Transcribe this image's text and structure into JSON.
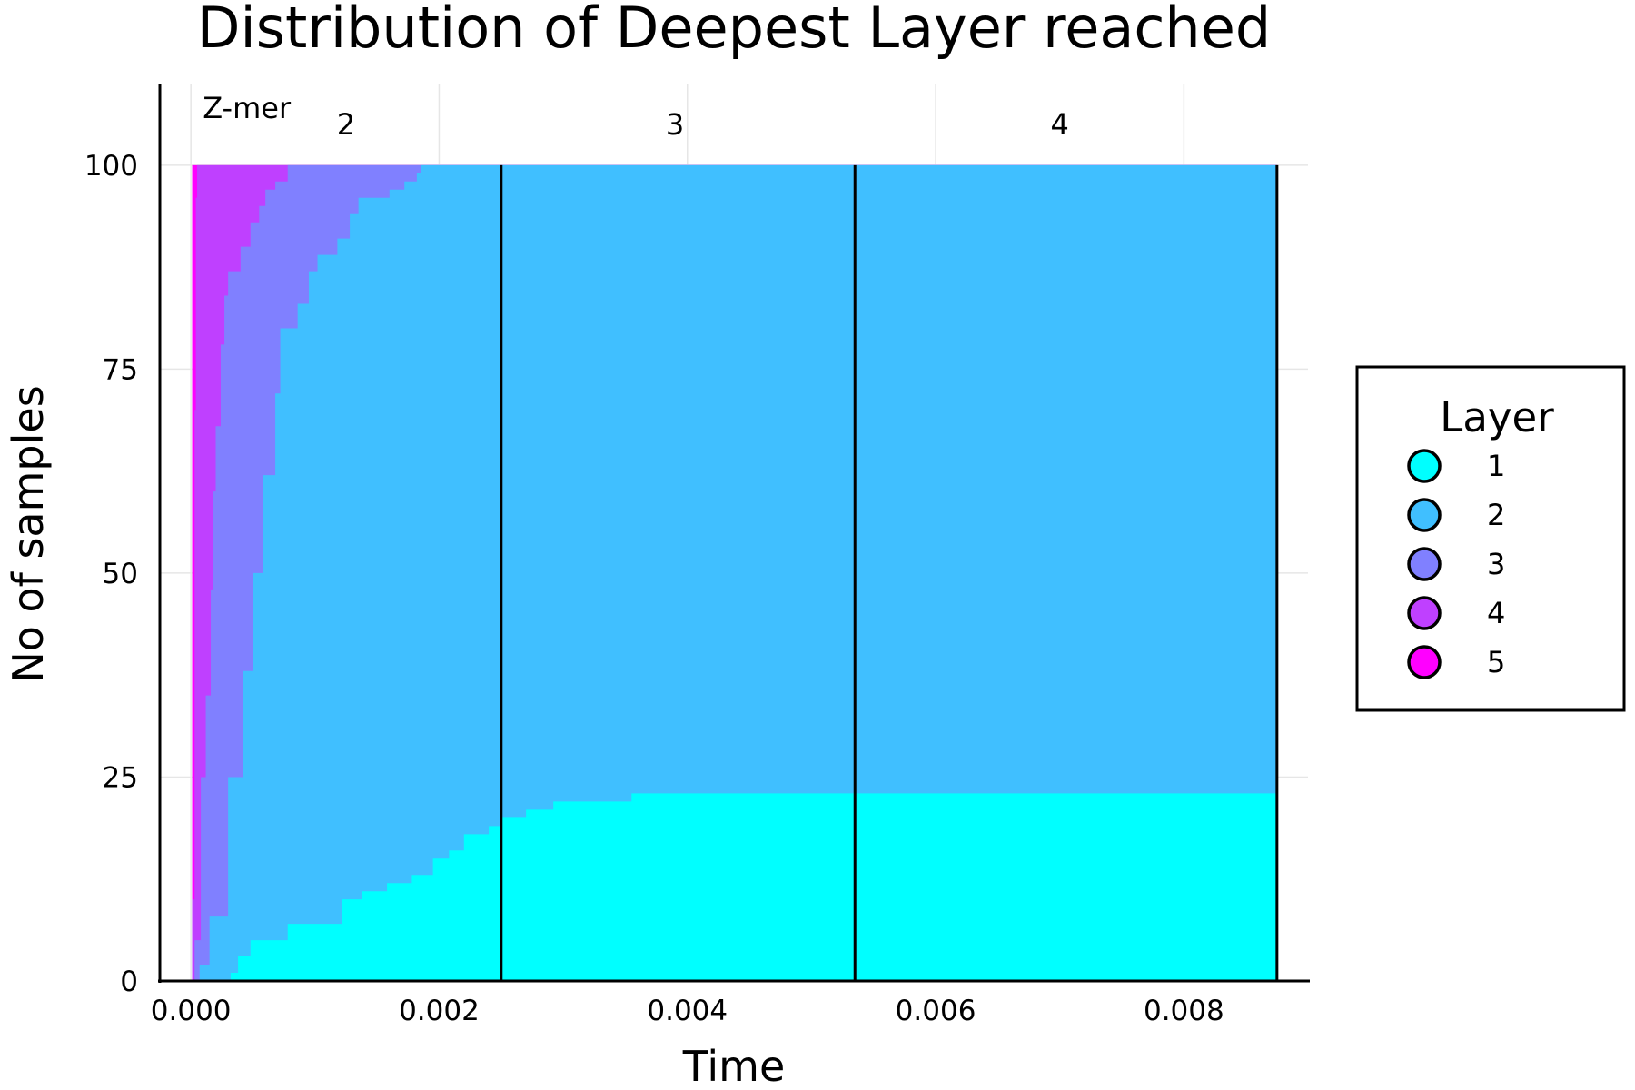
{
  "chart_data": {
    "type": "area",
    "stacked": true,
    "title": "Distribution of Deepest Layer reached",
    "xlabel": "Time",
    "ylabel": "No of samples",
    "xlim": [
      -0.00025,
      0.009
    ],
    "ylim": [
      0,
      110
    ],
    "x_ticks": [
      "0.000",
      "0.002",
      "0.004",
      "0.006",
      "0.008"
    ],
    "x_tick_values": [
      0,
      0.002,
      0.004,
      0.006,
      0.008
    ],
    "y_ticks": [
      "0",
      "25",
      "50",
      "75",
      "100"
    ],
    "y_tick_values": [
      0,
      25,
      50,
      75,
      100
    ],
    "grid": true,
    "legend": {
      "title": "Layer",
      "placement": "right",
      "entries": [
        {
          "label": "1",
          "color": "#00ffff"
        },
        {
          "label": "2",
          "color": "#40bfff"
        },
        {
          "label": "3",
          "color": "#8080ff"
        },
        {
          "label": "4",
          "color": "#bf40ff"
        },
        {
          "label": "5",
          "color": "#ff00ff"
        }
      ]
    },
    "vertical_lines": [
      0.0025,
      0.00535,
      0.00875
    ],
    "annotations": [
      {
        "text": "Z-mer",
        "x": 0.00045,
        "y": 107
      },
      {
        "text": "2",
        "x": 0.00125,
        "y": 105
      },
      {
        "text": "3",
        "x": 0.0039,
        "y": 105
      },
      {
        "text": "4",
        "x": 0.007,
        "y": 105
      }
    ],
    "x_end": 0.00875,
    "series": [
      {
        "name": "1",
        "color": "#00ffff",
        "cumulative_points": [
          [
            0.0,
            0
          ],
          [
            8e-05,
            0
          ],
          [
            0.00032,
            1
          ],
          [
            0.00038,
            3
          ],
          [
            0.00048,
            5
          ],
          [
            0.00078,
            7
          ],
          [
            0.00122,
            10
          ],
          [
            0.00138,
            11
          ],
          [
            0.00158,
            12
          ],
          [
            0.00178,
            13
          ],
          [
            0.00195,
            15
          ],
          [
            0.00208,
            16
          ],
          [
            0.0022,
            18
          ],
          [
            0.0024,
            19
          ],
          [
            0.0025,
            20
          ],
          [
            0.0027,
            21
          ],
          [
            0.00292,
            22
          ],
          [
            0.00355,
            23
          ],
          [
            0.00875,
            23
          ]
        ]
      },
      {
        "name": "2",
        "color": "#40bfff",
        "cumulative_points": [
          [
            0.0,
            0
          ],
          [
            7e-05,
            2
          ],
          [
            0.00015,
            8
          ],
          [
            0.0003,
            25
          ],
          [
            0.00042,
            38
          ],
          [
            0.0005,
            50
          ],
          [
            0.00058,
            62
          ],
          [
            0.00068,
            72
          ],
          [
            0.00072,
            80
          ],
          [
            0.00086,
            83
          ],
          [
            0.00095,
            87
          ],
          [
            0.00102,
            89
          ],
          [
            0.00118,
            91
          ],
          [
            0.00128,
            94
          ],
          [
            0.00135,
            96
          ],
          [
            0.0016,
            97
          ],
          [
            0.00172,
            98
          ],
          [
            0.00182,
            99
          ],
          [
            0.00185,
            100
          ],
          [
            0.00875,
            100
          ]
        ]
      },
      {
        "name": "3",
        "color": "#8080ff",
        "cumulative_points": [
          [
            0.0,
            0
          ],
          [
            3e-05,
            5
          ],
          [
            8e-05,
            25
          ],
          [
            0.00012,
            35
          ],
          [
            0.00016,
            48
          ],
          [
            0.00018,
            60
          ],
          [
            0.0002,
            68
          ],
          [
            0.00024,
            78
          ],
          [
            0.00027,
            84
          ],
          [
            0.0003,
            87
          ],
          [
            0.0004,
            90
          ],
          [
            0.00048,
            93
          ],
          [
            0.00055,
            95
          ],
          [
            0.0006,
            97
          ],
          [
            0.00068,
            98
          ],
          [
            0.00078,
            100
          ],
          [
            0.00875,
            100
          ]
        ]
      },
      {
        "name": "4",
        "color": "#bf40ff",
        "cumulative_points": [
          [
            0.0,
            0
          ],
          [
            1e-05,
            10
          ],
          [
            3e-05,
            70
          ],
          [
            4e-05,
            96
          ],
          [
            5e-05,
            100
          ],
          [
            0.00875,
            100
          ]
        ]
      },
      {
        "name": "5",
        "color": "#ff00ff",
        "cumulative_points": [
          [
            0.0,
            0
          ],
          [
            1e-05,
            100
          ],
          [
            0.00875,
            100
          ]
        ]
      }
    ]
  }
}
